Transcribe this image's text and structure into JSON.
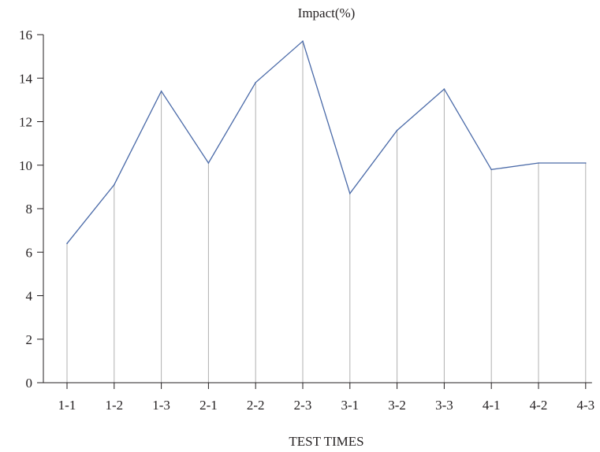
{
  "chart_data": {
    "type": "line",
    "title": "",
    "ylabel": "Impact(%)",
    "xlabel": "TEST TIMES",
    "categories": [
      "1-1",
      "1-2",
      "1-3",
      "2-1",
      "2-2",
      "2-3",
      "3-1",
      "3-2",
      "3-3",
      "4-1",
      "4-2",
      "4-3"
    ],
    "values": [
      6.4,
      9.1,
      13.4,
      10.1,
      13.8,
      15.7,
      8.7,
      11.6,
      13.5,
      9.8,
      10.1,
      10.1
    ],
    "ylim": [
      0,
      16
    ],
    "yticks": [
      "0",
      "2",
      "4",
      "6",
      "8",
      "10",
      "12",
      "14",
      "16"
    ],
    "grid": false,
    "drop_lines": true,
    "legend": "none",
    "colors": {
      "line": "#4a6aa8",
      "drop_line": "#b0b0b0",
      "axis": "#231f20"
    }
  }
}
